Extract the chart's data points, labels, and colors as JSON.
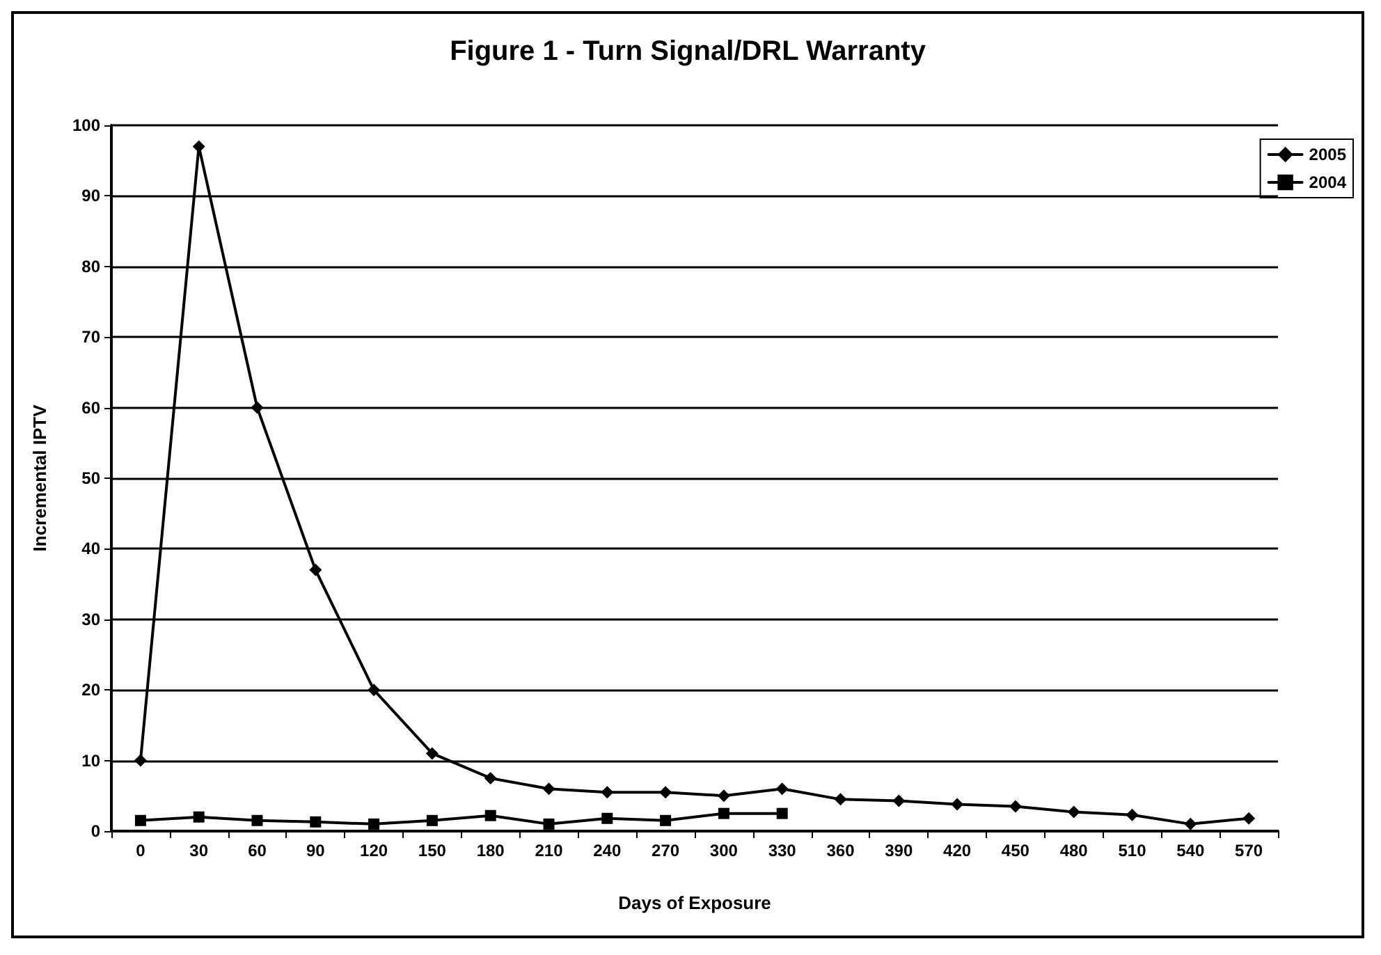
{
  "chart_data": {
    "type": "line",
    "title": "Figure 1 - Turn Signal/DRL Warranty",
    "xlabel": "Days of Exposure",
    "ylabel": "Incremental IPTV",
    "categories": [
      "0",
      "30",
      "60",
      "90",
      "120",
      "150",
      "180",
      "210",
      "240",
      "270",
      "300",
      "330",
      "360",
      "390",
      "420",
      "450",
      "480",
      "510",
      "540",
      "570"
    ],
    "series": [
      {
        "name": "2005",
        "color": "#000000",
        "marker": "diamond",
        "values": [
          10,
          97,
          60,
          37,
          20,
          11,
          7.5,
          6,
          5.5,
          5.5,
          5,
          6,
          4.5,
          4.3,
          3.8,
          3.5,
          2.7,
          2.3,
          1,
          1.8
        ]
      },
      {
        "name": "2004",
        "color": "#000000",
        "marker": "square",
        "values": [
          1.5,
          2,
          1.5,
          1.3,
          1,
          1.5,
          2.2,
          1,
          1.8,
          1.5,
          2.5,
          2.5,
          null,
          null,
          null,
          null,
          null,
          null,
          null,
          null
        ]
      }
    ],
    "ylim": [
      0,
      100
    ],
    "yticks": [
      0,
      10,
      20,
      30,
      40,
      50,
      60,
      70,
      80,
      90,
      100
    ],
    "grid": "y",
    "legend": "top right",
    "line_style": "solid"
  }
}
